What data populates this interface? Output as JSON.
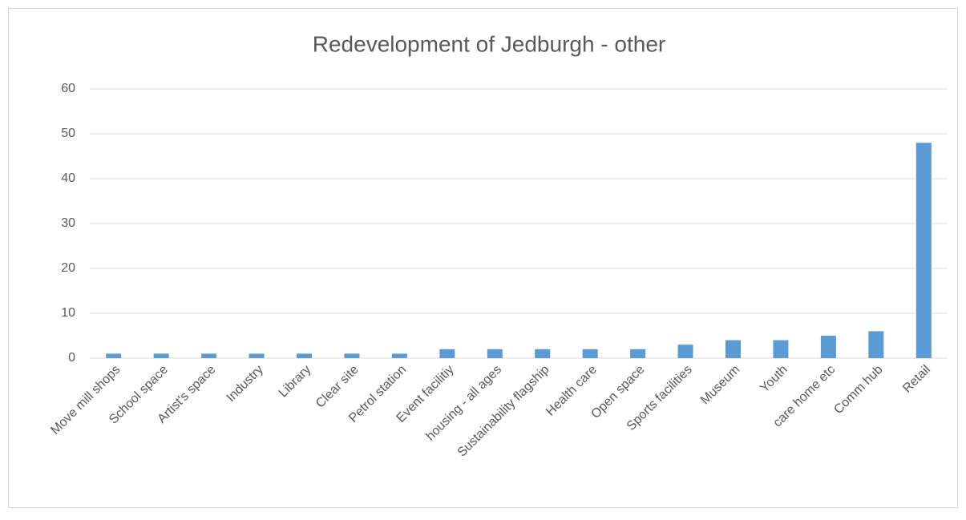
{
  "chart_data": {
    "type": "bar",
    "title": "Redevelopment of Jedburgh - other",
    "categories": [
      "Move mill shops",
      "School space",
      "Artist's space",
      "Industry",
      "Library",
      "Clear site",
      "Petrol station",
      "Event facilitiy",
      "housing - all ages",
      "Sustainability flagship",
      "Health care",
      "Open space",
      "Sports facilities",
      "Museum",
      "Youth",
      "care home etc",
      "Comm hub",
      "Retail"
    ],
    "values": [
      1,
      1,
      1,
      1,
      1,
      1,
      1,
      2,
      2,
      2,
      2,
      2,
      3,
      4,
      4,
      5,
      6,
      48
    ],
    "color": "#5b9bd5",
    "ylim": [
      0,
      60
    ],
    "yticks": [
      0,
      10,
      20,
      30,
      40,
      50,
      60
    ],
    "grid": true
  }
}
